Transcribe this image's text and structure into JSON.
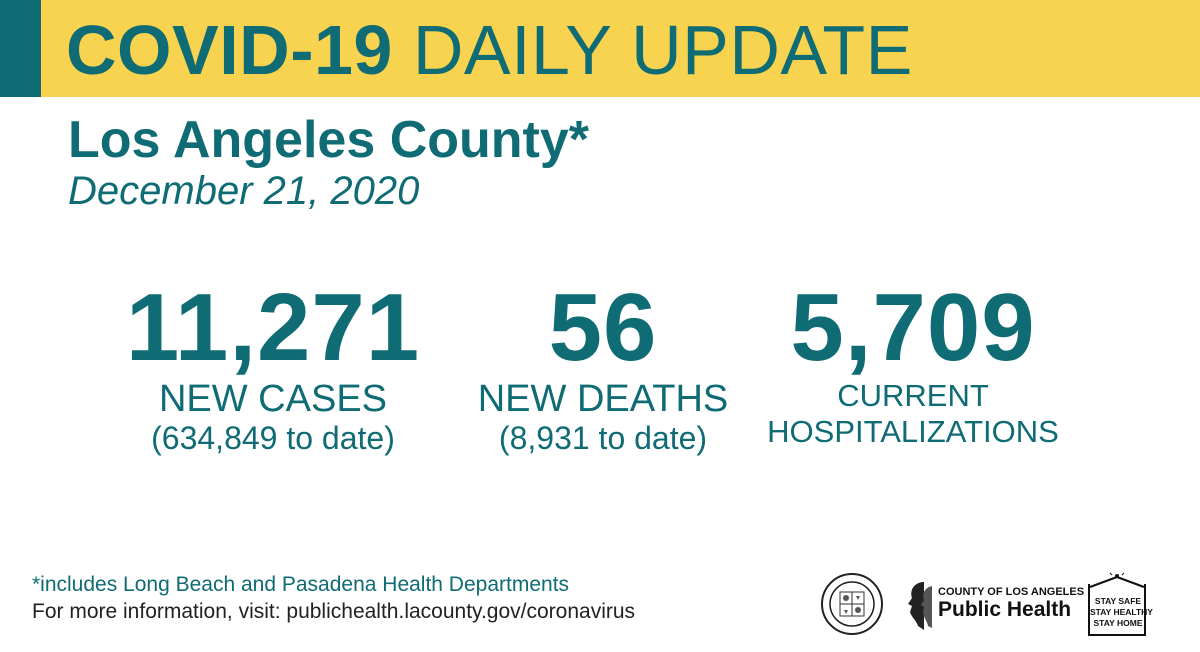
{
  "banner": {
    "title_bold": "COVID-19",
    "title_rest": "DAILY UPDATE"
  },
  "header": {
    "region": "Los Angeles County*",
    "date": "December 21, 2020"
  },
  "stats": {
    "cases": {
      "value": "11,271",
      "label": "NEW CASES",
      "sub": "(634,849 to date)"
    },
    "deaths": {
      "value": "56",
      "label": "NEW DEATHS",
      "sub": "(8,931 to date)"
    },
    "hospitalizations": {
      "value": "5,709",
      "label_line1": "CURRENT",
      "label_line2": "HOSPITALIZATIONS"
    }
  },
  "footer": {
    "note": "*includes Long Beach and Pasadena Health Departments",
    "more_info": "For more information, visit: publichealth.lacounty.gov/coronavirus"
  },
  "logos": {
    "public_health_top": "COUNTY OF LOS ANGELES",
    "public_health_main": "Public Health",
    "stay_line1": "STAY SAFE",
    "stay_line2": "STAY HEALTHY",
    "stay_line3": "STAY HOME"
  },
  "colors": {
    "teal": "#0f6b74",
    "banner_yellow": "#f8d34f"
  }
}
